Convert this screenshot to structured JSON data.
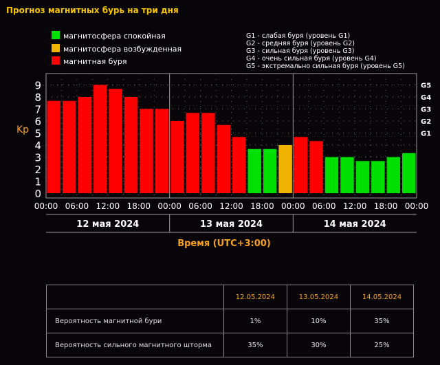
{
  "page": {
    "title": "Прогноз магнитных бурь на три дня"
  },
  "legend": {
    "items": [
      {
        "label": "магнитосфера спокойная",
        "color": "#00e000"
      },
      {
        "label": "магнитосфера возбужденная",
        "color": "#f0b400"
      },
      {
        "label": "магнитная буря",
        "color": "#ff0000"
      }
    ],
    "scale": [
      "G1 - слабая буря (уровень G1)",
      "G2 - средняя буря (уровень G2)",
      "G3 - сильная буря (уровень G3)",
      "G4 - очень сильная буря (уровень G4)",
      "G5 - экстремально сильная буря (уровень G5)"
    ]
  },
  "chart_data": {
    "type": "bar",
    "ylabel": "Kp",
    "xlabel": "Время (UTC+3:00)",
    "ylim": [
      0,
      9
    ],
    "yticks": [
      "0",
      "1",
      "2",
      "3",
      "4",
      "5",
      "6",
      "7",
      "8",
      "9"
    ],
    "g_levels": [
      {
        "label": "G1",
        "kp": 5
      },
      {
        "label": "G2",
        "kp": 6
      },
      {
        "label": "G3",
        "kp": 7
      },
      {
        "label": "G4",
        "kp": 8
      },
      {
        "label": "G5",
        "kp": 9
      }
    ],
    "xticks": [
      "00:00",
      "06:00",
      "12:00",
      "18:00",
      "00:00",
      "06:00",
      "12:00",
      "18:00",
      "00:00",
      "06:00",
      "12:00",
      "18:00",
      "00:00"
    ],
    "days": [
      "12 мая 2024",
      "13 мая 2024",
      "14 мая 2024"
    ],
    "values": [
      7.67,
      7.67,
      8.0,
      9.0,
      8.67,
      8.0,
      7.0,
      7.0,
      6.0,
      6.67,
      6.67,
      5.67,
      4.67,
      3.67,
      3.67,
      4.0,
      4.67,
      4.33,
      3.0,
      3.0,
      2.67,
      2.67,
      3.0,
      3.33
    ],
    "states": [
      "storm",
      "storm",
      "storm",
      "storm",
      "storm",
      "storm",
      "storm",
      "storm",
      "storm",
      "storm",
      "storm",
      "storm",
      "storm",
      "quiet",
      "quiet",
      "active",
      "storm",
      "storm",
      "quiet",
      "quiet",
      "quiet",
      "quiet",
      "quiet",
      "quiet"
    ],
    "colors": {
      "quiet": "#00e000",
      "active": "#f0b400",
      "storm": "#ff0000"
    },
    "grid": true
  },
  "table": {
    "headers": [
      "12.05.2024",
      "13.05.2024",
      "14.05.2024"
    ],
    "rows": [
      {
        "label": "Вероятность магнитной бури",
        "values": [
          "1%",
          "10%",
          "35%"
        ]
      },
      {
        "label": "Вероятность сильного магнитного шторма",
        "values": [
          "35%",
          "30%",
          "25%"
        ]
      }
    ]
  }
}
